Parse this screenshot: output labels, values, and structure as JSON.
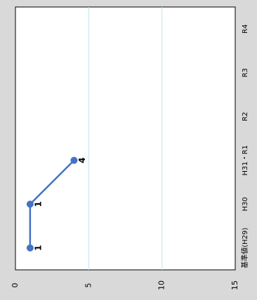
{
  "chart_data": {
    "type": "line",
    "orientation": "rotated-90-clockwise",
    "categories": [
      "基準値(H29)",
      "H30",
      "H31・R1",
      "R2",
      "R3",
      "R4"
    ],
    "series": [
      {
        "values": [
          1,
          1,
          4,
          null,
          null,
          null
        ]
      }
    ],
    "data_labels": [
      "1",
      "1",
      "4"
    ],
    "y_ticks": [
      "0",
      "5",
      "10",
      "15"
    ],
    "ylim": [
      0,
      15
    ],
    "grid": true,
    "legend": "none",
    "colors": {
      "line": "#4472c4",
      "marker": "#4472c4",
      "grid": "#bfe6ec",
      "frame": "#000000",
      "background": "#d9d9d9",
      "plot_background": "#ffffff"
    }
  }
}
